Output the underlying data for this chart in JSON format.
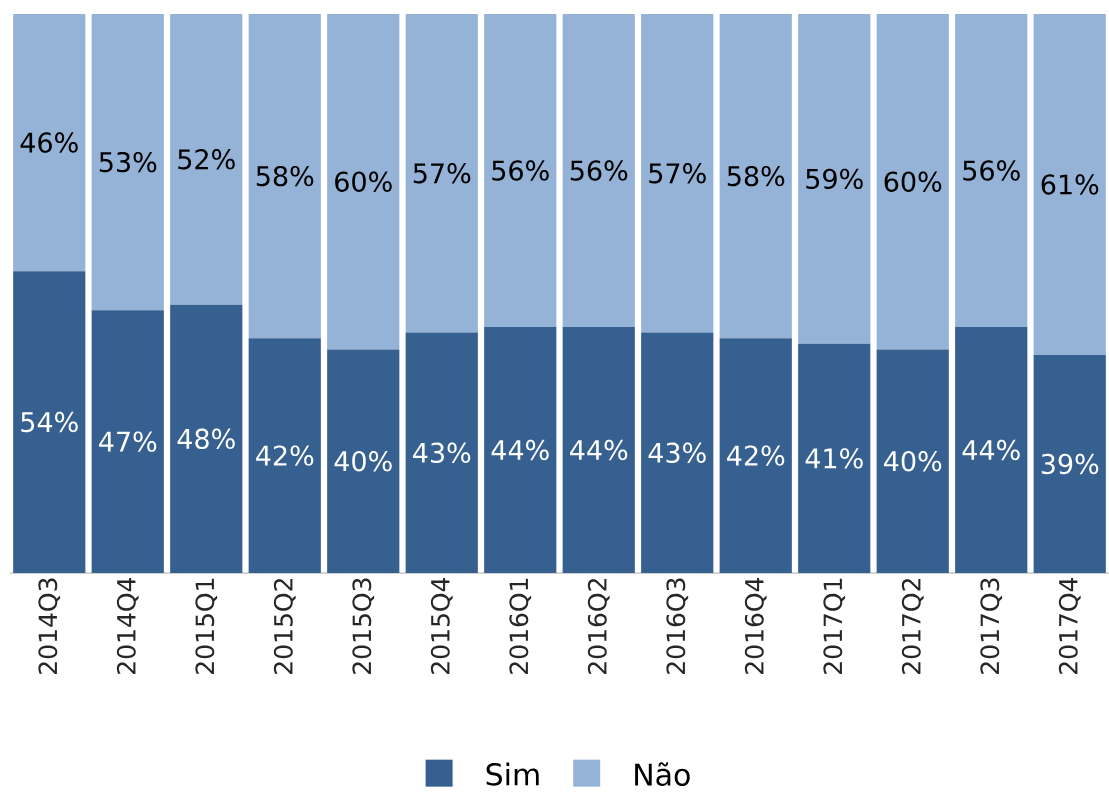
{
  "chart_data": {
    "type": "bar",
    "stacked": true,
    "ylim": [
      0,
      100
    ],
    "legend": "bottom",
    "categories": [
      "2014Q3",
      "2014Q4",
      "2015Q1",
      "2015Q2",
      "2015Q3",
      "2015Q4",
      "2016Q1",
      "2016Q2",
      "2016Q3",
      "2016Q4",
      "2017Q1",
      "2017Q2",
      "2017Q3",
      "2017Q4"
    ],
    "series": [
      {
        "name": "Sim",
        "color": "#36608f",
        "values": [
          54,
          47,
          48,
          42,
          40,
          43,
          44,
          44,
          43,
          42,
          41,
          40,
          44,
          39
        ],
        "value_labels": [
          "54%",
          "47%",
          "48%",
          "42%",
          "40%",
          "43%",
          "44%",
          "44%",
          "43%",
          "42%",
          "41%",
          "40%",
          "44%",
          "39%"
        ]
      },
      {
        "name": "Não",
        "color": "#95b3d7",
        "values": [
          46,
          53,
          52,
          58,
          60,
          57,
          56,
          56,
          57,
          58,
          59,
          60,
          56,
          61
        ],
        "value_labels": [
          "46%",
          "53%",
          "52%",
          "58%",
          "60%",
          "57%",
          "56%",
          "56%",
          "57%",
          "58%",
          "59%",
          "60%",
          "56%",
          "61%"
        ]
      }
    ]
  }
}
